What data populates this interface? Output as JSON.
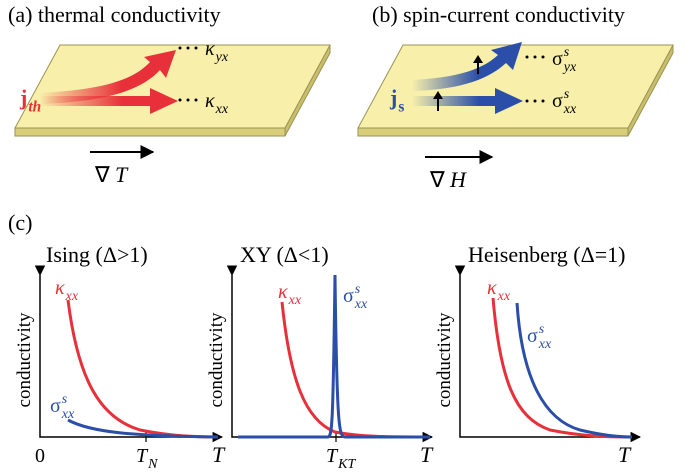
{
  "panel_a": {
    "title": "(a) thermal conductivity",
    "current": {
      "symbol": "j",
      "subscript": "th"
    },
    "outputs": [
      {
        "symbol": "κ",
        "subscript": "yx"
      },
      {
        "symbol": "κ",
        "subscript": "xx"
      }
    ],
    "gradient": {
      "symbol": "∇",
      "variable": "T"
    }
  },
  "panel_b": {
    "title": "(b) spin-current conductivity",
    "current": {
      "symbol": "j",
      "subscript": "s"
    },
    "outputs": [
      {
        "symbol": "σ",
        "superscript": "s",
        "subscript": "yx"
      },
      {
        "symbol": "σ",
        "superscript": "s",
        "subscript": "xx"
      }
    ],
    "gradient": {
      "symbol": "∇",
      "variable": "H"
    }
  },
  "panel_c": {
    "label": "(c)",
    "plots": [
      {
        "title": "Ising (Δ>1)",
        "y_label": "conductivity",
        "x_label": "T",
        "origin": "0",
        "transition": {
          "symbol": "T",
          "subscript": "N"
        },
        "curves": [
          {
            "symbol": "κ",
            "subscript": "xx"
          },
          {
            "symbol": "σ",
            "superscript": "s",
            "subscript": "xx"
          }
        ]
      },
      {
        "title": "XY (Δ<1)",
        "y_label": "conductivity",
        "x_label": "T",
        "transition": {
          "symbol": "T",
          "subscript": "KT"
        },
        "curves": [
          {
            "symbol": "κ",
            "subscript": "xx"
          },
          {
            "symbol": "σ",
            "superscript": "s",
            "subscript": "xx"
          }
        ]
      },
      {
        "title": "Heisenberg (Δ=1)",
        "y_label": "conductivity",
        "x_label": "T",
        "curves": [
          {
            "symbol": "κ",
            "subscript": "xx"
          },
          {
            "symbol": "σ",
            "superscript": "s",
            "subscript": "xx"
          }
        ]
      }
    ]
  }
}
